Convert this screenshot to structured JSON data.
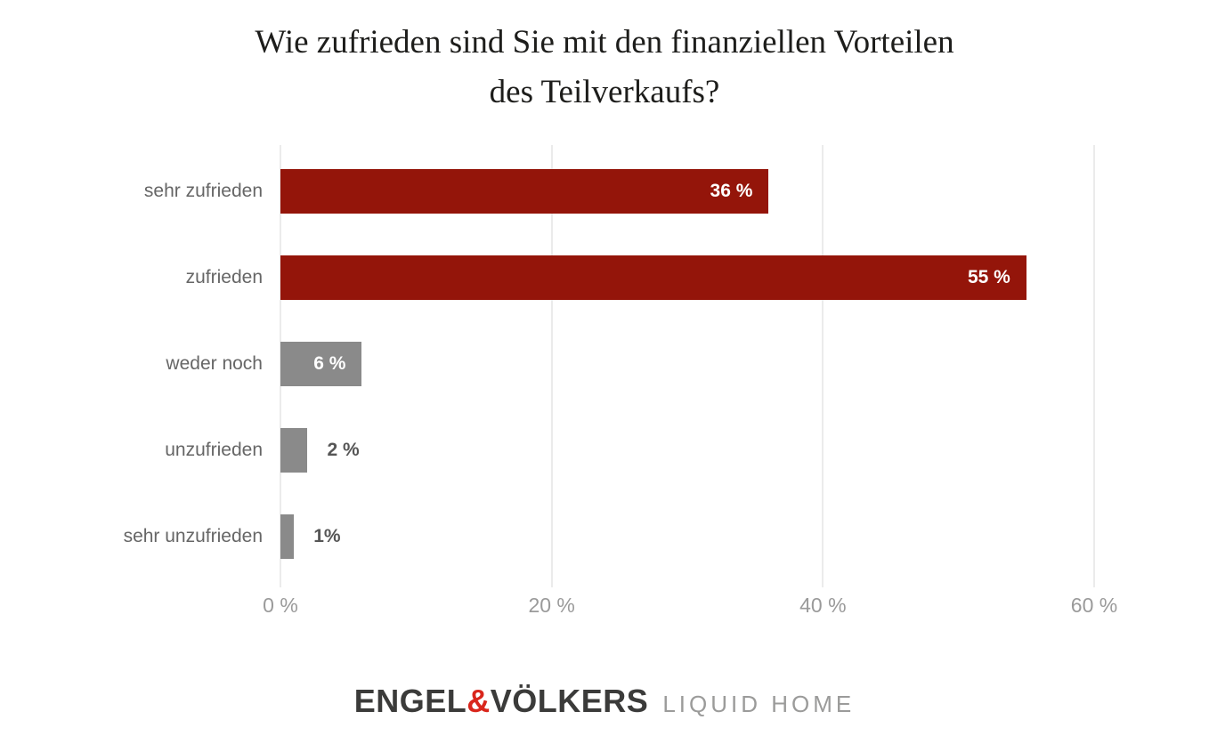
{
  "title": {
    "line1": "Wie zufrieden sind Sie mit den finanziellen Vorteilen",
    "line2": "des Teilverkaufs?"
  },
  "chart_data": {
    "type": "bar",
    "orientation": "horizontal",
    "title": "Wie zufrieden sind Sie mit den finanziellen Vorteilen des Teilverkaufs?",
    "categories": [
      "sehr zufrieden",
      "zufrieden",
      "weder noch",
      "unzufrieden",
      "sehr unzufrieden"
    ],
    "values": [
      36,
      55,
      6,
      2,
      1
    ],
    "value_labels": [
      "36 %",
      "55 %",
      "6 %",
      "2 %",
      "1%"
    ],
    "bar_colors": [
      "#94150a",
      "#94150a",
      "#8a8a8a",
      "#8a8a8a",
      "#8a8a8a"
    ],
    "xlim": [
      0,
      60
    ],
    "x_ticks": [
      0,
      20,
      40,
      60
    ],
    "x_tick_labels": [
      "0 %",
      "20 %",
      "40 %",
      "60 %"
    ],
    "grid": true,
    "legend": "none",
    "label_inside_threshold": 6
  },
  "colors": {
    "accent_red": "#94150a",
    "neutral_gray": "#8a8a8a",
    "gridline": "#ebebeb",
    "category_text": "#666666",
    "value_inside_text": "#ffffff",
    "value_outside_text": "#565656",
    "tick_text": "#9a9a9a",
    "title_text": "#1d1d1b",
    "logo_dark": "#3b3b3a",
    "logo_ampersand": "#d9261c",
    "logo_sub": "#9b9b9a"
  },
  "logo": {
    "brand_left": "ENGEL",
    "ampersand": "&",
    "brand_right": "VÖLKERS",
    "product": "LIQUID HOME"
  }
}
